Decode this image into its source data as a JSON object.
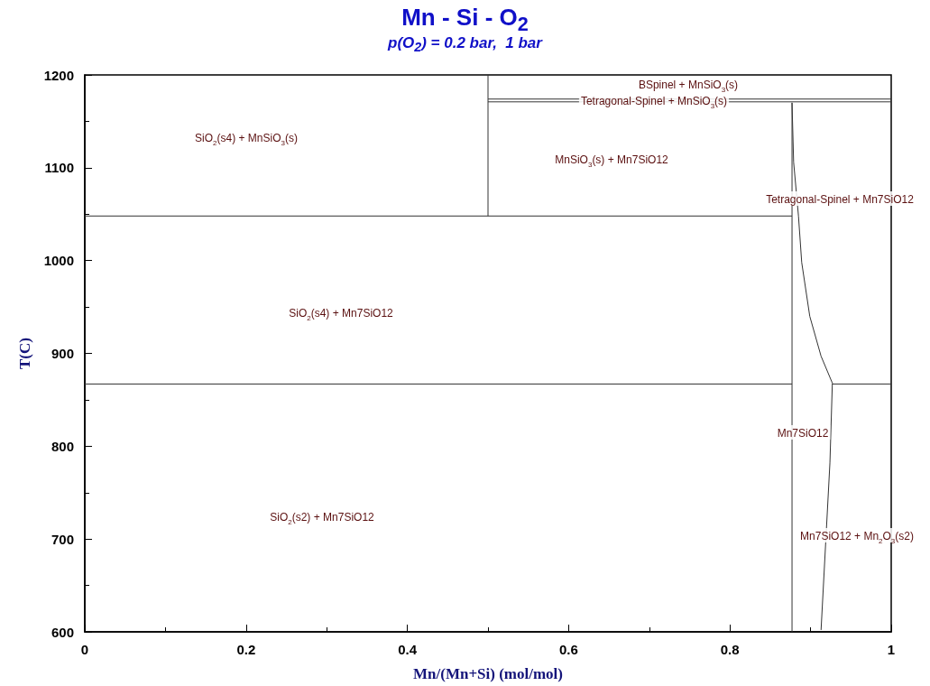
{
  "chart_data": {
    "type": "line",
    "title": "Mn - Si - O$_{2}$",
    "subtitle": "p(O$_{2}$) = 0.2 bar,  1 bar",
    "xlabel": "Mn/(Mn+Si) (mol/mol)",
    "ylabel": "T(C)",
    "xlim": [
      0,
      1
    ],
    "xticks": [
      0,
      0.2,
      0.4,
      0.6,
      0.8,
      1
    ],
    "ylim": [
      600,
      1200
    ],
    "yticks": [
      600,
      700,
      800,
      900,
      1000,
      1100,
      1200
    ],
    "grid": false,
    "marker": "none",
    "line_style": "solid",
    "series": [
      {
        "color": "#333333",
        "x": [
          0,
          0.877
        ],
        "values": [
          1048,
          1048
        ]
      },
      {
        "color": "#333333",
        "x": [
          0,
          0.877
        ],
        "values": [
          867,
          867
        ]
      },
      {
        "color": "#333333",
        "x": [
          0.927,
          1
        ],
        "values": [
          867,
          867
        ]
      },
      {
        "color": "#333333",
        "x": [
          0.5,
          0.5
        ],
        "values": [
          1048,
          1200
        ]
      },
      {
        "color": "#333333",
        "x": [
          0.5,
          1
        ],
        "values": [
          1174,
          1174
        ]
      },
      {
        "color": "#333333",
        "x": [
          0.5,
          1
        ],
        "values": [
          1171,
          1171
        ]
      },
      {
        "color": "#333333",
        "x": [
          0.877,
          0.877
        ],
        "values": [
          600,
          1170
        ]
      },
      {
        "color": "#333333",
        "x": [
          0.877,
          0.879,
          0.885,
          0.889,
          0.899,
          0.913,
          0.927,
          0.924,
          0.913
        ],
        "values": [
          1170,
          1106,
          1048,
          998,
          940,
          897,
          868,
          782,
          602
        ]
      }
    ],
    "annotations": [
      "SiO$_{2}$(s4) + MnSiO$_{3}$(s)",
      "BSpinel + MnSiO$_{3}$(s)",
      "Tetragonal-Spinel + MnSiO$_{3}$(s)",
      "MnSiO$_{3}$(s) + Mn7SiO12",
      "Tetragonal-Spinel + Mn7SiO12",
      "SiO$_{2}$(s4) + Mn7SiO12",
      "Mn7SiO12",
      "SiO$_{2}$(s2) + Mn7SiO12",
      "Mn7SiO12 + Mn$_{2}$O$_{3}$(s2)"
    ]
  }
}
